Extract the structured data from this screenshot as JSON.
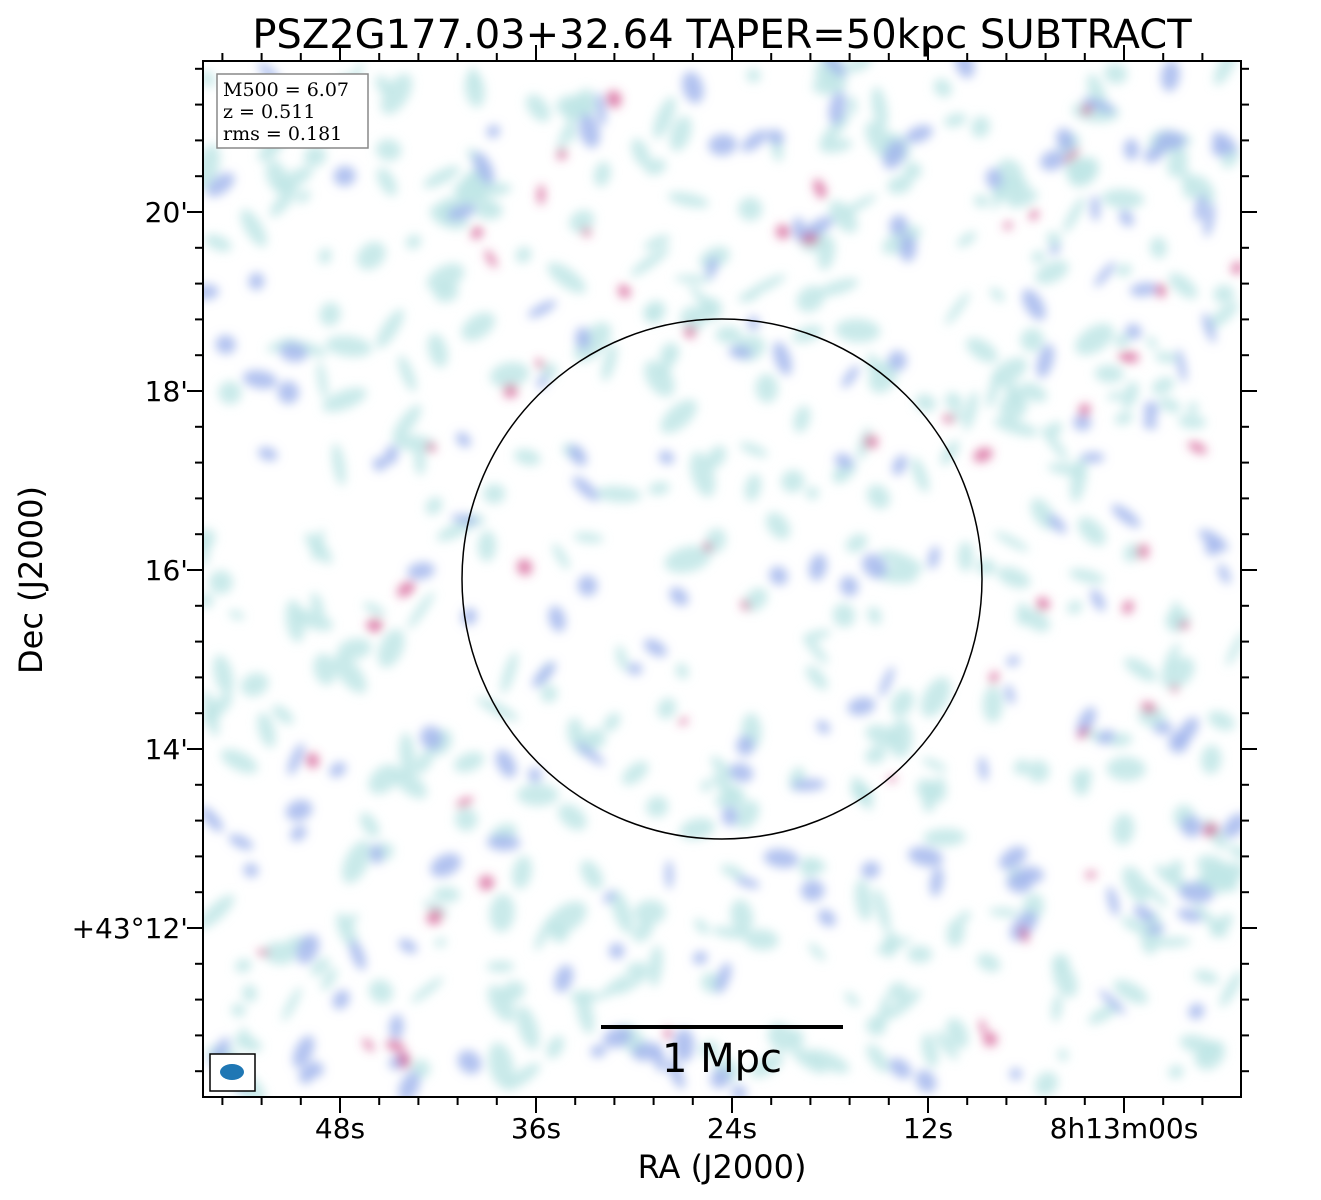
{
  "chart_data": {
    "type": "heatmap",
    "title": "PSZ2G177.03+32.64 TAPER=50kpc SUBTRACT",
    "xlabel": "RA (J2000)",
    "ylabel": "Dec (J2000)",
    "x_ticks": [
      "48s",
      "36s",
      "24s",
      "12s",
      "8h13m00s"
    ],
    "y_ticks": [
      "20'",
      "18'",
      "16'",
      "14'",
      "+43°12'"
    ],
    "info": {
      "m500": "M500 = 6.07",
      "z": "z = 0.511",
      "rms": "rms = 0.181"
    },
    "scalebar_label": "1 Mpc",
    "grid": false,
    "colors": {
      "low": "#bfe6e6",
      "mid": "#9fb3ec",
      "high": "#d0508a",
      "beam": "#1f77b4",
      "circle": "#000000"
    },
    "features": [
      "circle-aperture",
      "beam-ellipse",
      "scale-bar",
      "info-box"
    ]
  }
}
